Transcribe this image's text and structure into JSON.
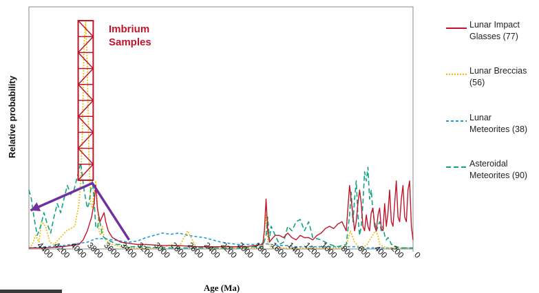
{
  "chart_data": {
    "type": "line",
    "title": "",
    "xlabel": "Age (Ma)",
    "ylabel": "Relative probability",
    "xlim": [
      4600,
      0
    ],
    "ylim": [
      0,
      1
    ],
    "x_ticks": [
      4400,
      4200,
      4000,
      3800,
      3600,
      3400,
      3200,
      3000,
      2800,
      2600,
      2400,
      2200,
      2000,
      1800,
      1600,
      1400,
      1200,
      1000,
      800,
      600,
      400,
      200,
      0
    ],
    "grid": false,
    "legend_position": "right",
    "annotations": [
      {
        "text_line1": "Imbrium",
        "text_line2": "Samples",
        "color": "#c0142a",
        "age_from": 4010,
        "age_to": 3830
      }
    ],
    "arrow": {
      "color": "#7030a0",
      "from": [
        3400,
        0.04
      ],
      "via": [
        3840,
        0.29
      ],
      "to": [
        4580,
        0.17
      ]
    },
    "series": [
      {
        "name": "Lunar Impact Glasses (77)",
        "color": "#c0142a",
        "dash": "solid",
        "x": [
          4600,
          4400,
          4200,
          4000,
          3950,
          3900,
          3850,
          3820,
          3800,
          3780,
          3750,
          3700,
          3680,
          3650,
          3600,
          3550,
          3500,
          3400,
          3300,
          3200,
          3000,
          2800,
          2600,
          2400,
          2200,
          2000,
          1800,
          1780,
          1760,
          1740,
          1720,
          1700,
          1650,
          1600,
          1550,
          1500,
          1450,
          1400,
          1350,
          1300,
          1250,
          1200,
          1150,
          1100,
          1050,
          1000,
          950,
          900,
          850,
          800,
          760,
          720,
          700,
          680,
          660,
          640,
          620,
          600,
          580,
          560,
          540,
          520,
          500,
          480,
          460,
          440,
          420,
          400,
          380,
          360,
          340,
          320,
          300,
          280,
          260,
          240,
          220,
          200,
          180,
          160,
          140,
          120,
          100,
          80,
          60,
          40,
          20,
          0
        ],
        "y": [
          0.005,
          0.005,
          0.01,
          0.02,
          0.04,
          0.08,
          0.14,
          0.2,
          0.28,
          0.18,
          0.12,
          0.16,
          0.12,
          0.08,
          0.05,
          0.04,
          0.03,
          0.025,
          0.02,
          0.02,
          0.015,
          0.015,
          0.01,
          0.01,
          0.01,
          0.01,
          0.02,
          0.08,
          0.22,
          0.08,
          0.03,
          0.04,
          0.06,
          0.06,
          0.05,
          0.07,
          0.05,
          0.04,
          0.06,
          0.05,
          0.05,
          0.04,
          0.06,
          0.07,
          0.09,
          0.1,
          0.09,
          0.11,
          0.12,
          0.08,
          0.28,
          0.15,
          0.08,
          0.12,
          0.2,
          0.26,
          0.2,
          0.1,
          0.08,
          0.15,
          0.1,
          0.08,
          0.16,
          0.18,
          0.1,
          0.08,
          0.15,
          0.18,
          0.09,
          0.08,
          0.2,
          0.1,
          0.16,
          0.26,
          0.12,
          0.1,
          0.2,
          0.3,
          0.14,
          0.12,
          0.22,
          0.28,
          0.14,
          0.12,
          0.26,
          0.3,
          0.1,
          0.04
        ]
      },
      {
        "name": "Lunar Breccias (56)",
        "color": "#f2b800",
        "dash": "dotted",
        "x": [
          4600,
          4560,
          4520,
          4480,
          4450,
          4400,
          4350,
          4300,
          4250,
          4200,
          4150,
          4100,
          4050,
          4000,
          3980,
          3960,
          3940,
          3920,
          3900,
          3880,
          3860,
          3840,
          3820,
          3800,
          3780,
          3760,
          3740,
          3720,
          3700,
          3650,
          3600,
          3550,
          3500,
          3400,
          3200,
          3000,
          2900,
          2800,
          2700,
          2600,
          2400,
          2200,
          2000,
          1900,
          1800,
          1760,
          1740,
          1700,
          1650,
          1600,
          1500,
          1400,
          1300,
          1200,
          1100,
          1000,
          900,
          800,
          750,
          700,
          650,
          600,
          550,
          500,
          450,
          420,
          400,
          350,
          300,
          250,
          200,
          100,
          0
        ],
        "y": [
          0.005,
          0.02,
          0.06,
          0.03,
          0.12,
          0.1,
          0.03,
          0.02,
          0.04,
          0.06,
          0.08,
          0.09,
          0.1,
          0.2,
          0.3,
          0.5,
          0.9,
          1.0,
          0.8,
          0.4,
          0.2,
          0.18,
          0.25,
          0.3,
          0.2,
          0.08,
          0.06,
          0.1,
          0.05,
          0.03,
          0.02,
          0.015,
          0.01,
          0.005,
          0.005,
          0.005,
          0.02,
          0.01,
          0.08,
          0.01,
          0.005,
          0.005,
          0.005,
          0.005,
          0.005,
          0.15,
          0.03,
          0.005,
          0.005,
          0.005,
          0.005,
          0.005,
          0.005,
          0.005,
          0.005,
          0.005,
          0.005,
          0.01,
          0.08,
          0.03,
          0.01,
          0.005,
          0.02,
          0.05,
          0.08,
          0.06,
          0.02,
          0.01,
          0.005,
          0.005,
          0.005,
          0.005,
          0.005
        ]
      },
      {
        "name": "Lunar Meteorites (38)",
        "color": "#1e9bd7",
        "dash": "small-dash",
        "x": [
          4600,
          4400,
          4200,
          4000,
          3900,
          3800,
          3700,
          3600,
          3500,
          3400,
          3300,
          3200,
          3100,
          3000,
          2900,
          2800,
          2700,
          2600,
          2500,
          2400,
          2300,
          2200,
          2100,
          2000,
          1900,
          1800,
          1700,
          1600,
          1500,
          1400,
          1300,
          1200,
          1100,
          1000,
          900,
          800,
          700,
          600,
          500,
          400,
          300,
          200,
          100,
          0
        ],
        "y": [
          0.005,
          0.01,
          0.015,
          0.025,
          0.03,
          0.045,
          0.045,
          0.04,
          0.035,
          0.03,
          0.035,
          0.05,
          0.06,
          0.07,
          0.065,
          0.07,
          0.06,
          0.055,
          0.05,
          0.04,
          0.03,
          0.025,
          0.02,
          0.02,
          0.02,
          0.025,
          0.02,
          0.015,
          0.015,
          0.01,
          0.01,
          0.01,
          0.01,
          0.01,
          0.01,
          0.01,
          0.01,
          0.005,
          0.005,
          0.005,
          0.005,
          0.005,
          0.005,
          0.005
        ]
      },
      {
        "name": "Asteroidal Meteorites (90)",
        "color": "#10a37f",
        "dash": "long-dash",
        "x": [
          4600,
          4570,
          4540,
          4500,
          4460,
          4420,
          4380,
          4340,
          4300,
          4260,
          4220,
          4180,
          4140,
          4100,
          4060,
          4020,
          3980,
          3940,
          3900,
          3880,
          3860,
          3840,
          3820,
          3800,
          3780,
          3760,
          3740,
          3720,
          3700,
          3650,
          3600,
          3550,
          3500,
          3400,
          3300,
          3000,
          2600,
          2300,
          2000,
          1900,
          1800,
          1760,
          1740,
          1720,
          1700,
          1650,
          1600,
          1550,
          1500,
          1450,
          1400,
          1350,
          1300,
          1250,
          1200,
          1100,
          1000,
          900,
          800,
          760,
          740,
          720,
          700,
          680,
          660,
          640,
          620,
          600,
          580,
          560,
          540,
          520,
          500,
          480,
          460,
          440,
          420,
          400,
          380,
          360,
          340,
          320,
          300,
          280,
          260,
          240,
          220,
          200,
          150,
          100,
          50,
          0
        ],
        "y": [
          0.26,
          0.22,
          0.14,
          0.06,
          0.1,
          0.16,
          0.11,
          0.07,
          0.14,
          0.2,
          0.16,
          0.22,
          0.28,
          0.24,
          0.26,
          0.32,
          0.38,
          0.26,
          0.18,
          0.2,
          0.26,
          0.3,
          0.22,
          0.1,
          0.09,
          0.14,
          0.1,
          0.06,
          0.05,
          0.04,
          0.03,
          0.02,
          0.02,
          0.01,
          0.01,
          0.005,
          0.005,
          0.005,
          0.005,
          0.01,
          0.01,
          0.06,
          0.14,
          0.04,
          0.1,
          0.06,
          0.02,
          0.03,
          0.1,
          0.08,
          0.12,
          0.13,
          0.08,
          0.12,
          0.05,
          0.04,
          0.02,
          0.01,
          0.02,
          0.15,
          0.25,
          0.12,
          0.22,
          0.3,
          0.15,
          0.06,
          0.1,
          0.2,
          0.34,
          0.3,
          0.36,
          0.22,
          0.26,
          0.16,
          0.12,
          0.08,
          0.1,
          0.12,
          0.08,
          0.1,
          0.06,
          0.04,
          0.05,
          0.04,
          0.02,
          0.02,
          0.01,
          0.01,
          0.005,
          0.005,
          0.005,
          0.005
        ]
      }
    ]
  },
  "legend": {
    "items": [
      {
        "line1": "Lunar Impact",
        "line2": "Glasses (77)"
      },
      {
        "line1": "Lunar Breccias",
        "line2": "(56)"
      },
      {
        "line1": "Lunar",
        "line2": "Meteorites (38)"
      },
      {
        "line1": "Asteroidal",
        "line2": "Meteorites (90)"
      }
    ]
  }
}
